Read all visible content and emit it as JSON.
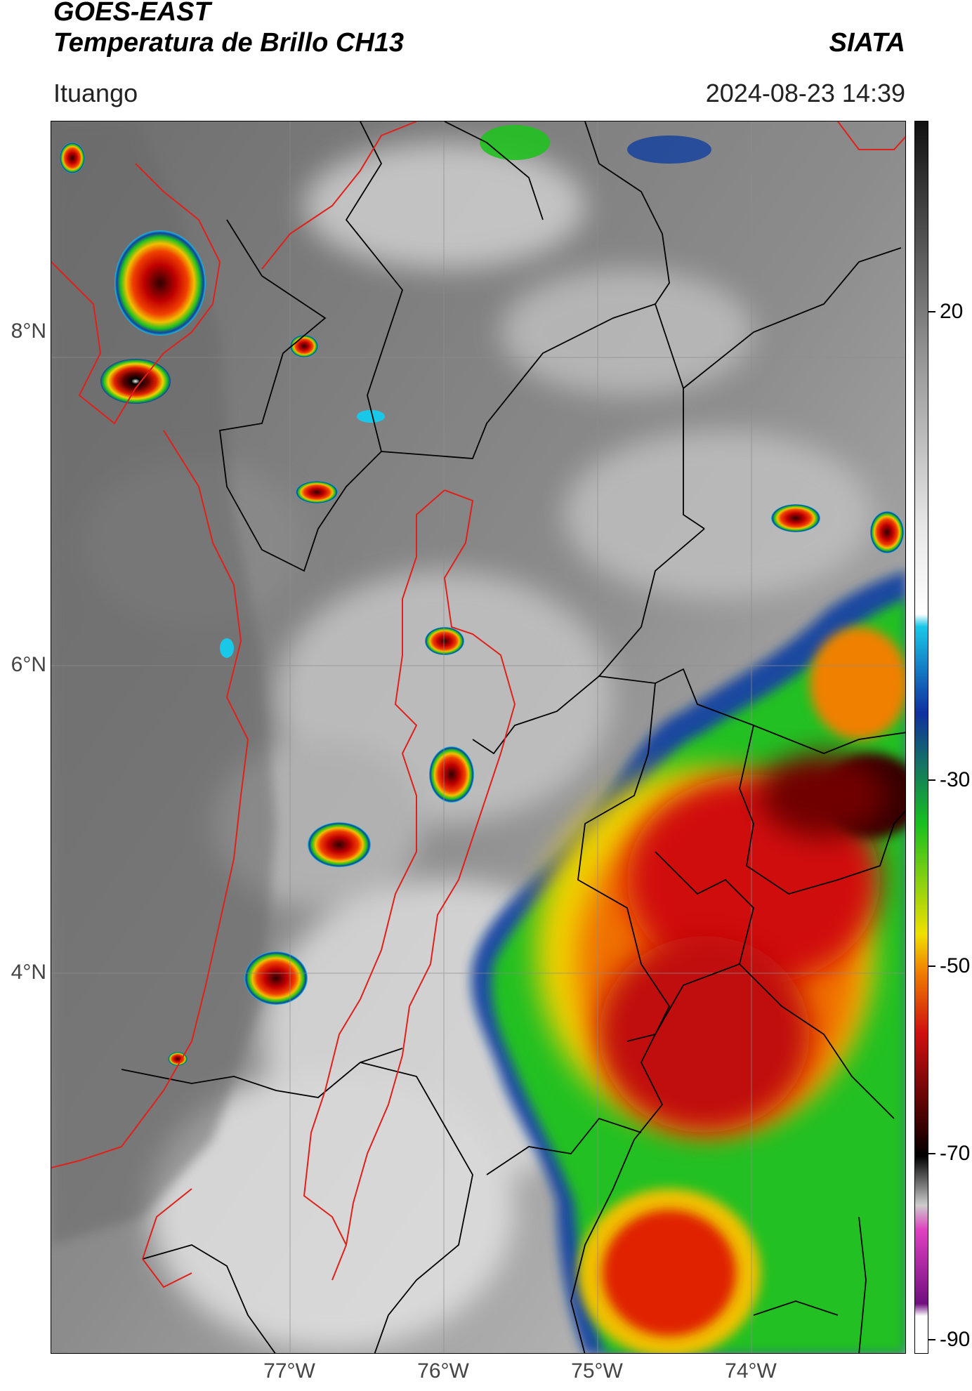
{
  "header": {
    "title_line1": "GOES-EAST",
    "title_line2": "Temperatura de Brillo CH13",
    "organization": "SIATA",
    "location": "Ituango",
    "datetime": "2024-08-23 14:39"
  },
  "map": {
    "lat_labels": [
      "8°N",
      "6°N",
      "4°N"
    ],
    "lon_labels": [
      "77°W",
      "76°W",
      "75°W",
      "74°W"
    ],
    "border_colors": {
      "department": "#e0201a",
      "municipality": "#000000"
    }
  },
  "colorbar": {
    "ticks": [
      "20",
      "-30",
      "-50",
      "-70",
      "-90"
    ],
    "colors": {
      "warm_gray_top": "#111111",
      "light_gray": "#e8e8e8",
      "cyan": "#19c8e8",
      "blue": "#1030a0",
      "green": "#18c020",
      "yellow": "#f0e000",
      "orange": "#f08000",
      "red": "#d01010",
      "dark_red": "#300000",
      "black": "#000000",
      "magenta": "#e040c0",
      "purple": "#701080"
    }
  }
}
